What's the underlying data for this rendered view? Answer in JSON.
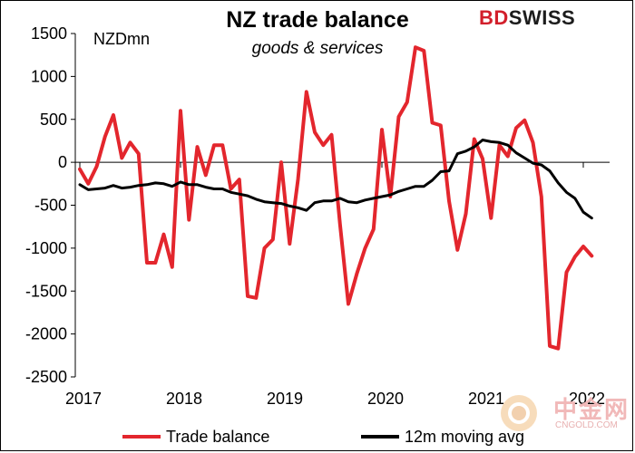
{
  "header": {
    "title": "NZ trade balance",
    "subtitle": "goods & services",
    "logo_bd": "BD",
    "logo_swiss": "SWISS",
    "unit_label": "NZDmn"
  },
  "legend": {
    "trade_label": "Trade balance",
    "avg_label": "12m moving avg"
  },
  "watermark": {
    "name": "中金网",
    "site": "CNGOLD.COM"
  },
  "colors": {
    "trade": "#e3262d",
    "avg": "#000000",
    "brand": "#d21f2b"
  },
  "chart_data": {
    "type": "line",
    "ylim": [
      -2500,
      1500
    ],
    "yticks": [
      1500,
      1000,
      500,
      0,
      -500,
      -1000,
      -1500,
      -2000,
      -2500
    ],
    "xticks": [
      "2017",
      "2018",
      "2019",
      "2020",
      "2021",
      "2022"
    ],
    "x_start_year": 2017,
    "series": [
      {
        "name": "Trade balance",
        "values": [
          -80,
          -250,
          -50,
          300,
          550,
          50,
          230,
          100,
          -1170,
          -1170,
          -840,
          -1220,
          600,
          -670,
          180,
          -150,
          200,
          200,
          -310,
          -200,
          -1560,
          -1580,
          -1000,
          -900,
          0,
          -950,
          -200,
          820,
          350,
          200,
          320,
          -720,
          -1650,
          -1300,
          -1000,
          -780,
          380,
          -400,
          530,
          700,
          1340,
          1300,
          460,
          430,
          -450,
          -1020,
          -600,
          270,
          40,
          -650,
          200,
          70,
          400,
          490,
          230,
          -400,
          -2140,
          -2170,
          -1280,
          -1100,
          -980,
          -1090
        ],
        "color": "#e3262d"
      },
      {
        "name": "12m moving avg",
        "values": [
          -260,
          -320,
          -310,
          -300,
          -270,
          -300,
          -290,
          -270,
          -260,
          -240,
          -250,
          -280,
          -230,
          -260,
          -260,
          -290,
          -310,
          -310,
          -350,
          -370,
          -390,
          -430,
          -460,
          -470,
          -480,
          -510,
          -530,
          -560,
          -470,
          -450,
          -450,
          -420,
          -460,
          -470,
          -440,
          -420,
          -400,
          -380,
          -340,
          -310,
          -280,
          -280,
          -210,
          -110,
          -100,
          100,
          130,
          180,
          260,
          240,
          230,
          200,
          110,
          50,
          -10,
          -30,
          -100,
          -240,
          -350,
          -420,
          -580,
          -650
        ],
        "color": "#000000"
      }
    ]
  }
}
